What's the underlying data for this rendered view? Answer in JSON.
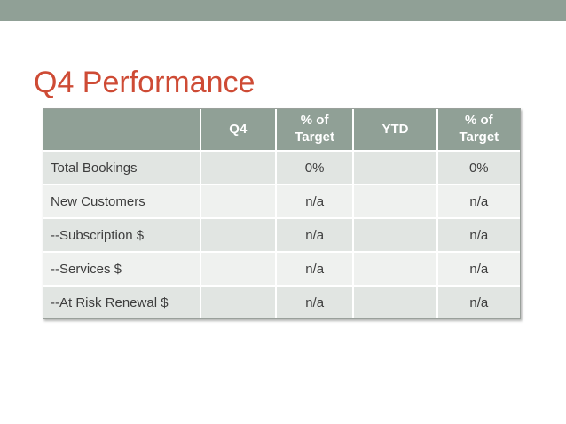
{
  "slide": {
    "title": "Q4 Performance"
  },
  "colors": {
    "accent_green": "#90A096",
    "title_orange_red": "#CE4B35",
    "row_band_dark": "#E1E5E2",
    "row_band_light": "#EFF1EF",
    "header_text": "#FFFFFF",
    "body_text": "#3D3D3D",
    "table_outer_border": "#9AA09B"
  },
  "table": {
    "columns": [
      "",
      "Q4",
      "% of Target",
      "YTD",
      "% of Target"
    ],
    "rows": [
      {
        "label": "Total Bookings",
        "values": [
          "",
          "0%",
          "",
          "0%"
        ]
      },
      {
        "label": "New Customers",
        "values": [
          "",
          "n/a",
          "",
          "n/a"
        ]
      },
      {
        "label": "--Subscription $",
        "values": [
          "",
          "n/a",
          "",
          "n/a"
        ]
      },
      {
        "label": "--Services $",
        "values": [
          "",
          "n/a",
          "",
          "n/a"
        ]
      },
      {
        "label": "--At Risk Renewal $",
        "values": [
          "",
          "n/a",
          "",
          "n/a"
        ]
      }
    ]
  }
}
